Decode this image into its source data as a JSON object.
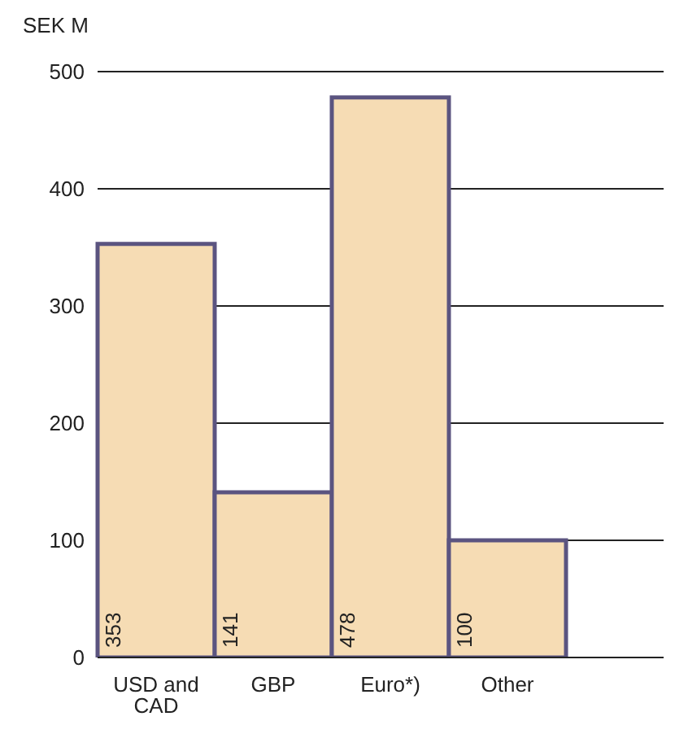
{
  "chart_data": {
    "type": "bar",
    "ylabel": "SEK M",
    "categories": [
      "USD and CAD",
      "GBP",
      "Euro*)",
      "Other"
    ],
    "values": [
      353,
      141,
      478,
      100
    ],
    "color": "#f6dcb4",
    "ylim": [
      0,
      500
    ],
    "yticks": [
      0,
      100,
      200,
      300,
      400,
      500
    ],
    "grid": "y",
    "data_labels": true
  }
}
